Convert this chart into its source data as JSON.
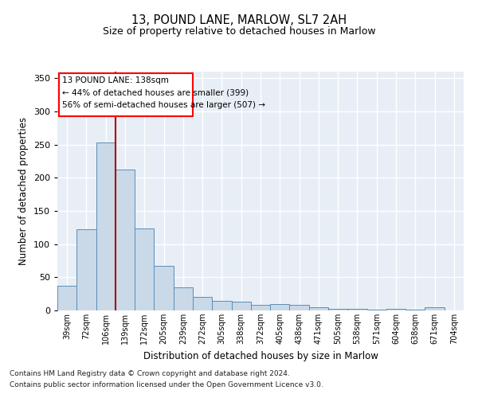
{
  "title1": "13, POUND LANE, MARLOW, SL7 2AH",
  "title2": "Size of property relative to detached houses in Marlow",
  "xlabel": "Distribution of detached houses by size in Marlow",
  "ylabel": "Number of detached properties",
  "categories": [
    "39sqm",
    "72sqm",
    "106sqm",
    "139sqm",
    "172sqm",
    "205sqm",
    "239sqm",
    "272sqm",
    "305sqm",
    "338sqm",
    "372sqm",
    "405sqm",
    "438sqm",
    "471sqm",
    "505sqm",
    "538sqm",
    "571sqm",
    "604sqm",
    "638sqm",
    "671sqm",
    "704sqm"
  ],
  "values": [
    37,
    123,
    253,
    212,
    124,
    67,
    35,
    20,
    15,
    13,
    9,
    10,
    9,
    5,
    3,
    2,
    1,
    2,
    1,
    5,
    0
  ],
  "bar_color": "#c9d9e8",
  "bar_edge_color": "#5b8db8",
  "bg_color": "#e8eef5",
  "vline_color": "#aa0000",
  "footer1": "Contains HM Land Registry data © Crown copyright and database right 2024.",
  "footer2": "Contains public sector information licensed under the Open Government Licence v3.0.",
  "ylim": [
    0,
    360
  ],
  "yticks": [
    0,
    50,
    100,
    150,
    200,
    250,
    300,
    350
  ],
  "annotation_lines": [
    "13 POUND LANE: 138sqm",
    "← 44% of detached houses are smaller (399)",
    "56% of semi-detached houses are larger (507) →"
  ]
}
